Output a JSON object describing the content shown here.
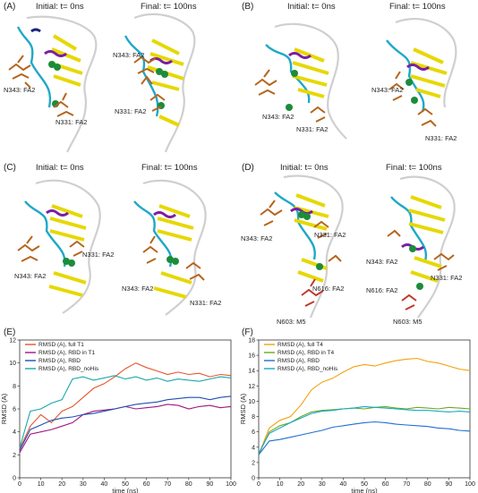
{
  "panels": [
    {
      "label": "(A)",
      "initial": "Initial: t= 0ns",
      "final": "Final: t= 100ns",
      "ann": [
        "N343: FA2",
        "N331: FA2",
        "N343: FA2",
        "N331: FA2"
      ]
    },
    {
      "label": "(B)",
      "initial": "Initial: t= 0ns",
      "final": "Final: t= 100ns",
      "ann": [
        "N343: FA2",
        "N331: FA2",
        "N343: FA2",
        "N331: FA2"
      ]
    },
    {
      "label": "(C)",
      "initial": "Initial: t= 0ns",
      "final": "Final: t= 100ns",
      "ann": [
        "N331: FA2",
        "N343: FA2",
        "N343: FA2",
        "N331: FA2"
      ]
    },
    {
      "label": "(D)",
      "initial": "Initial: t= 0ns",
      "final": "Final: t= 100ns",
      "ann": [
        "N343: FA2",
        "N331: FA2",
        "N616: FA2",
        "N603: M5",
        "N343: FA2",
        "N616: FA2",
        "N331: FA2",
        "N603: M5"
      ]
    }
  ],
  "colors": {
    "helix": "#7b1fa2",
    "sheet": "#e6d800",
    "turn": "#1fa8c8",
    "coil": "#cfcfcf",
    "glycan": "#b5651d",
    "glycan_m5": "#c0392b",
    "bead": "#1c8c3a"
  },
  "chart_data": [
    {
      "label": "(E)",
      "type": "line",
      "xlabel": "time (ns)",
      "ylabel": "RMSD (A)",
      "xlim": [
        0,
        100
      ],
      "ylim": [
        0,
        12
      ],
      "xticks": [
        0,
        10,
        20,
        30,
        40,
        50,
        60,
        70,
        80,
        90,
        100
      ],
      "yticks": [
        0,
        2,
        4,
        6,
        8,
        10,
        12
      ],
      "legend_position": "top-left",
      "series": [
        {
          "name": "RMSD (A), full T1",
          "color": "#e8542c",
          "x": [
            0,
            5,
            10,
            15,
            20,
            25,
            30,
            35,
            40,
            45,
            50,
            55,
            60,
            65,
            70,
            75,
            80,
            85,
            90,
            95,
            100
          ],
          "y": [
            2.5,
            4.5,
            5.5,
            4.8,
            5.8,
            6.2,
            7.0,
            7.8,
            8.2,
            8.8,
            9.5,
            10.0,
            9.6,
            9.3,
            9.0,
            9.2,
            9.0,
            9.1,
            8.8,
            9.0,
            8.9
          ]
        },
        {
          "name": "RMSD (A), RBD in T1",
          "color": "#a0167f",
          "x": [
            0,
            5,
            10,
            15,
            20,
            25,
            30,
            35,
            40,
            45,
            50,
            55,
            60,
            65,
            70,
            75,
            80,
            85,
            90,
            95,
            100
          ],
          "y": [
            2.2,
            3.8,
            4.0,
            4.2,
            4.5,
            4.8,
            5.5,
            5.8,
            5.9,
            6.0,
            6.2,
            6.0,
            6.1,
            6.2,
            6.4,
            6.3,
            6.0,
            6.2,
            6.3,
            6.1,
            6.2
          ]
        },
        {
          "name": "RMSD (A), RBD",
          "color": "#1f4fb0",
          "x": [
            0,
            5,
            10,
            15,
            20,
            25,
            30,
            35,
            40,
            45,
            50,
            55,
            60,
            65,
            70,
            75,
            80,
            85,
            90,
            95,
            100
          ],
          "y": [
            2.4,
            4.2,
            4.6,
            5.0,
            5.2,
            5.3,
            5.5,
            5.6,
            5.8,
            6.0,
            6.2,
            6.4,
            6.5,
            6.6,
            6.8,
            6.9,
            7.0,
            7.0,
            6.8,
            7.0,
            7.1
          ]
        },
        {
          "name": "RMSD (A), RBD_noHis",
          "color": "#1aa8a8",
          "x": [
            0,
            5,
            10,
            15,
            20,
            25,
            30,
            35,
            40,
            45,
            50,
            55,
            60,
            65,
            70,
            75,
            80,
            85,
            90,
            95,
            100
          ],
          "y": [
            2.6,
            5.8,
            6.0,
            6.5,
            6.8,
            8.6,
            8.8,
            8.5,
            8.7,
            8.9,
            8.6,
            8.8,
            8.5,
            8.7,
            8.4,
            8.6,
            8.5,
            8.4,
            8.6,
            8.8,
            8.7
          ]
        }
      ]
    },
    {
      "label": "(F)",
      "type": "line",
      "xlabel": "time (ns)",
      "ylabel": "RMSD (A)",
      "xlim": [
        0,
        100
      ],
      "ylim": [
        0,
        18
      ],
      "xticks": [
        0,
        10,
        20,
        30,
        40,
        50,
        60,
        70,
        80,
        90,
        100
      ],
      "yticks": [
        0,
        2,
        4,
        6,
        8,
        10,
        12,
        14,
        16,
        18
      ],
      "legend_position": "top-left",
      "series": [
        {
          "name": "RMSD (A), full T4",
          "color": "#f2a20d",
          "x": [
            0,
            5,
            10,
            15,
            20,
            25,
            30,
            35,
            40,
            45,
            50,
            55,
            60,
            65,
            70,
            75,
            80,
            85,
            90,
            95,
            100
          ],
          "y": [
            3.0,
            6.5,
            7.5,
            8.0,
            9.5,
            11.5,
            12.5,
            13.0,
            13.8,
            14.5,
            14.8,
            14.6,
            15.0,
            15.3,
            15.5,
            15.6,
            15.2,
            15.0,
            14.6,
            14.2,
            14.0
          ]
        },
        {
          "name": "RMSD (A), RBD in T4",
          "color": "#6ea81e",
          "x": [
            0,
            5,
            10,
            15,
            20,
            25,
            30,
            35,
            40,
            45,
            50,
            55,
            60,
            65,
            70,
            75,
            80,
            85,
            90,
            95,
            100
          ],
          "y": [
            3.0,
            6.0,
            6.8,
            7.2,
            8.0,
            8.6,
            8.8,
            8.9,
            9.0,
            9.1,
            9.0,
            9.2,
            9.3,
            9.1,
            9.0,
            9.2,
            9.1,
            9.0,
            9.2,
            9.1,
            9.0
          ]
        },
        {
          "name": "RMSD (A), RBD",
          "color": "#1f6fd0",
          "x": [
            0,
            5,
            10,
            15,
            20,
            25,
            30,
            35,
            40,
            45,
            50,
            55,
            60,
            65,
            70,
            75,
            80,
            85,
            90,
            95,
            100
          ],
          "y": [
            3.0,
            4.8,
            5.0,
            5.3,
            5.6,
            5.9,
            6.2,
            6.6,
            6.8,
            7.0,
            7.2,
            7.3,
            7.2,
            7.0,
            6.9,
            6.8,
            6.7,
            6.5,
            6.4,
            6.2,
            6.1
          ]
        },
        {
          "name": "RMSD (A), RBD_noHis",
          "color": "#17a9c2",
          "x": [
            0,
            5,
            10,
            15,
            20,
            25,
            30,
            35,
            40,
            45,
            50,
            55,
            60,
            65,
            70,
            75,
            80,
            85,
            90,
            95,
            100
          ],
          "y": [
            3.2,
            5.8,
            6.5,
            7.2,
            7.8,
            8.4,
            8.7,
            8.8,
            9.0,
            9.1,
            9.3,
            9.2,
            9.1,
            9.0,
            8.9,
            8.8,
            8.8,
            8.7,
            8.6,
            8.7,
            8.6
          ]
        }
      ]
    }
  ]
}
